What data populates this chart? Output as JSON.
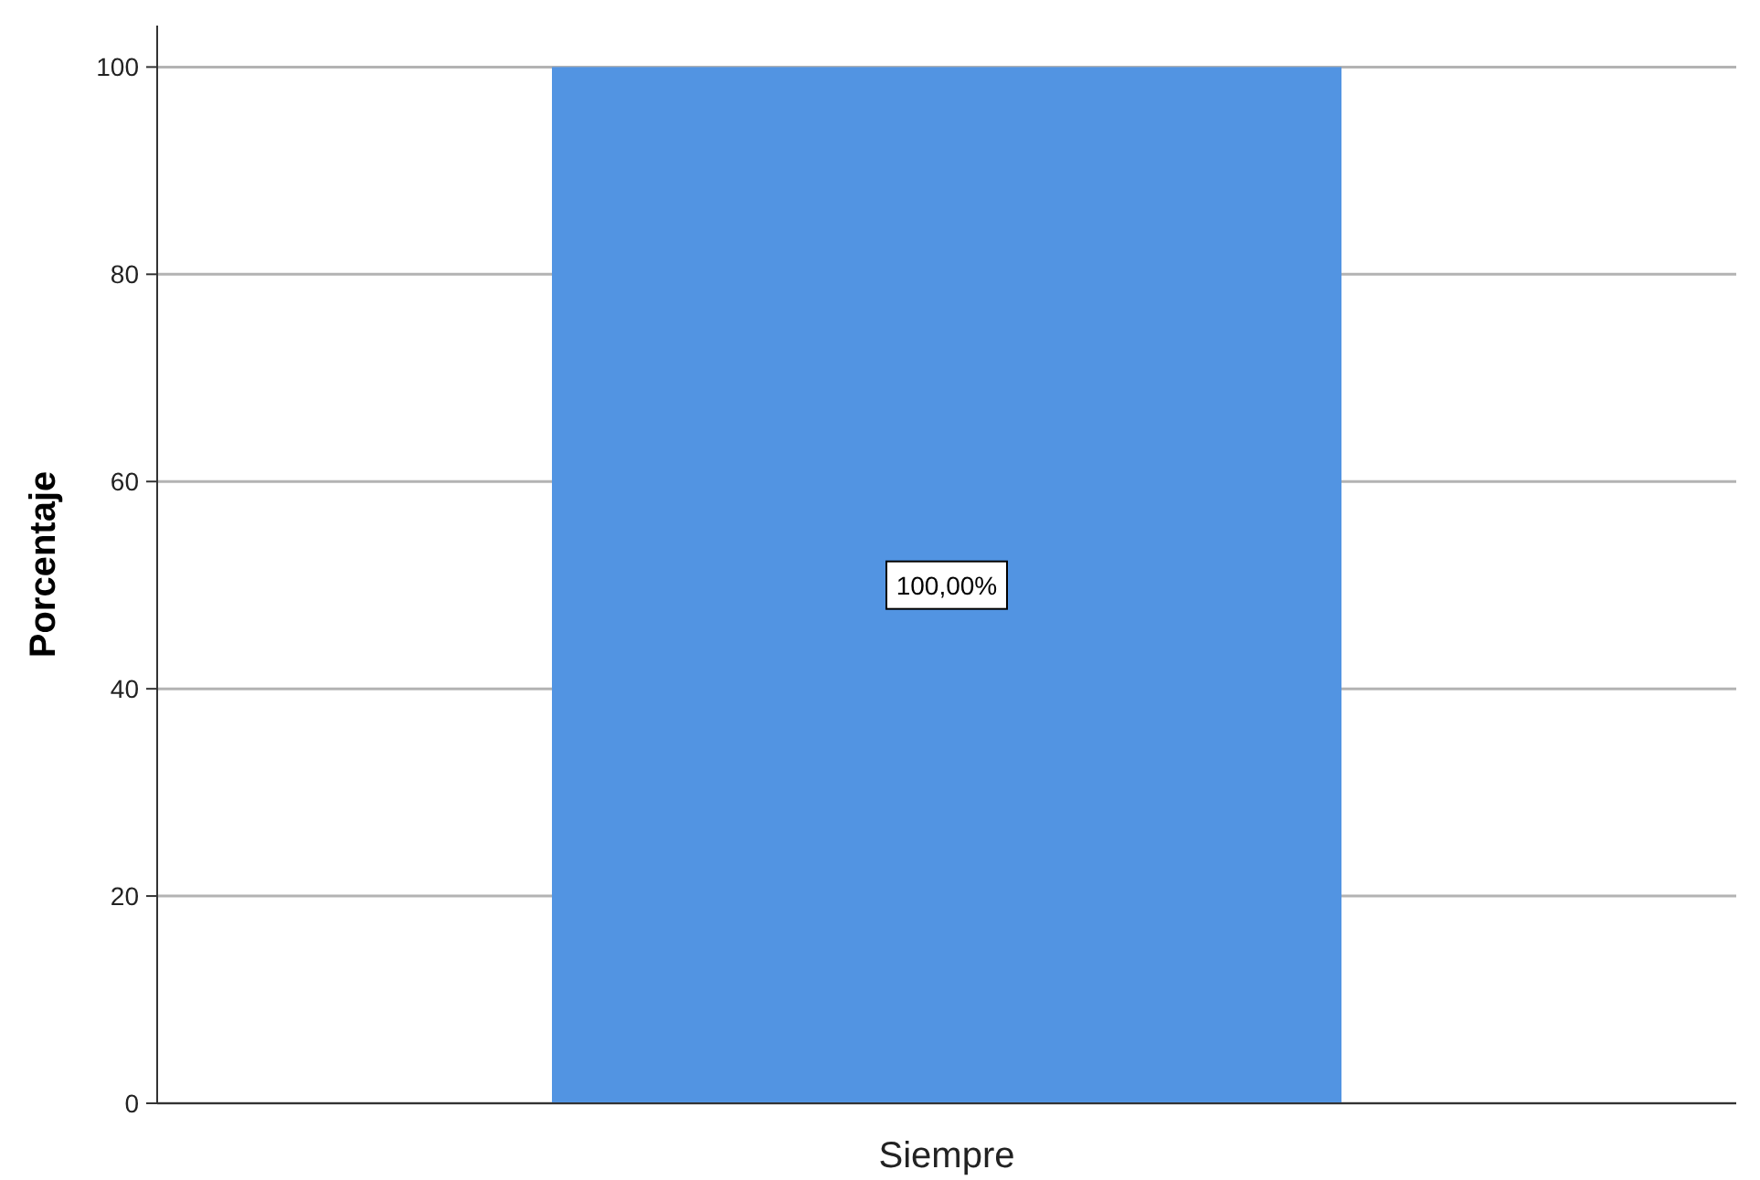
{
  "chart_data": {
    "type": "bar",
    "ylabel": "Porcentaje",
    "categories": [
      "Siempre"
    ],
    "values": [
      100
    ],
    "value_labels": [
      "100,00%"
    ],
    "color": "#5294e2",
    "ylim": [
      0,
      104
    ],
    "yticks": [
      0,
      20,
      40,
      60,
      80,
      100
    ],
    "grid": "y"
  }
}
